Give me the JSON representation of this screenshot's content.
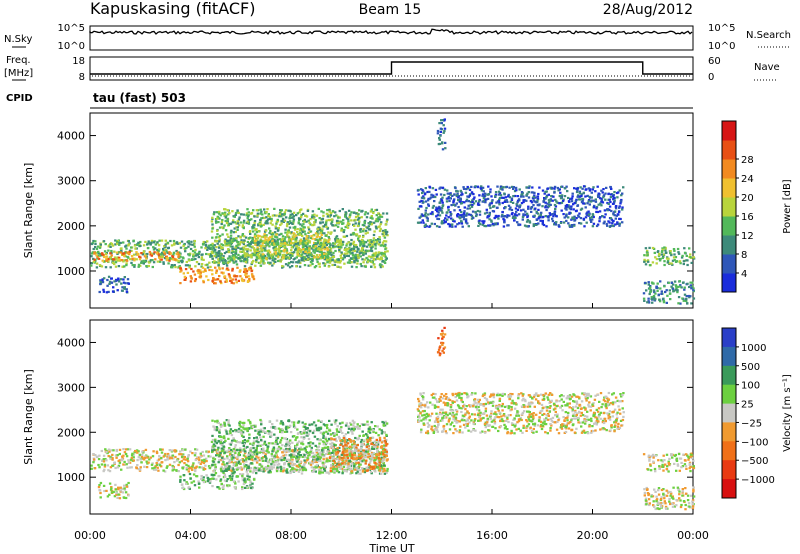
{
  "header": {
    "station": "Kapuskasing (fitACF)",
    "beam": "Beam 15",
    "date": "28/Aug/2012"
  },
  "panels": {
    "nsky_label": "N.Sky",
    "nsearch_label": "N.Search",
    "freq_label_1": "Freq.",
    "freq_label_2": "[MHz]",
    "nave_label": "Nave",
    "cpid_label": "CPID",
    "cpid_text": "tau (fast) 503",
    "noise_ticks": [
      "10^5",
      "10^0"
    ],
    "freq_ticks": [
      "18",
      "8"
    ],
    "nave_ticks": [
      "60",
      "0"
    ]
  },
  "chart_data": [
    {
      "type": "heatmap",
      "name_hint": "power",
      "xlabel": "Time UT",
      "ylabel": "Slant Range [km]",
      "xlim": [
        "00:00",
        "24:00"
      ],
      "ylim": [
        180,
        4500
      ],
      "xticks": [
        "00:00",
        "04:00",
        "08:00",
        "12:00",
        "16:00",
        "20:00",
        "00:00"
      ],
      "yticks": [
        1000,
        2000,
        3000,
        4000
      ],
      "colorbar": {
        "label": "Power [dB]",
        "ticks": [
          "4",
          "8",
          "12",
          "16",
          "20",
          "24",
          "28"
        ],
        "colors": [
          "#1a2ddb",
          "#2f57b8",
          "#3d8a7a",
          "#52b85a",
          "#b8d43c",
          "#f0c030",
          "#f28a20",
          "#e85015",
          "#d61515"
        ]
      },
      "blobs": [
        {
          "t0": 0.0,
          "t1": 11.8,
          "r0": 1100,
          "r1": 1700,
          "level": 3
        },
        {
          "t0": 0.0,
          "t1": 3.5,
          "r0": 1250,
          "r1": 1450,
          "level": 6
        },
        {
          "t0": 3.5,
          "t1": 6.5,
          "r0": 750,
          "r1": 1100,
          "level": 6
        },
        {
          "t0": 4.8,
          "t1": 11.8,
          "r0": 1200,
          "r1": 2400,
          "level": 3
        },
        {
          "t0": 6.5,
          "t1": 9.5,
          "r0": 1300,
          "r1": 1900,
          "level": 4
        },
        {
          "t0": 0.3,
          "t1": 1.5,
          "r0": 550,
          "r1": 900,
          "level": 1
        },
        {
          "t0": 13.0,
          "t1": 21.2,
          "r0": 2000,
          "r1": 2900,
          "level": 1
        },
        {
          "t0": 13.8,
          "t1": 14.1,
          "r0": 3700,
          "r1": 4400,
          "level": 1
        },
        {
          "t0": 22.0,
          "t1": 24.0,
          "r0": 1150,
          "r1": 1550,
          "level": 3
        },
        {
          "t0": 22.0,
          "t1": 24.0,
          "r0": 300,
          "r1": 800,
          "level": 2
        }
      ]
    },
    {
      "type": "heatmap",
      "name_hint": "velocity",
      "xlabel": "Time UT",
      "ylabel": "Slant Range [km]",
      "xlim": [
        "00:00",
        "24:00"
      ],
      "ylim": [
        180,
        4500
      ],
      "xticks": [
        "00:00",
        "04:00",
        "08:00",
        "12:00",
        "16:00",
        "20:00",
        "00:00"
      ],
      "yticks": [
        1000,
        2000,
        3000,
        4000
      ],
      "colorbar": {
        "label": "Velocity [m s⁻¹]",
        "ticks": [
          "1000",
          "500",
          "100",
          "25",
          "−25",
          "−100",
          "−500",
          "−1000"
        ],
        "colors": [
          "#2a3fc8",
          "#2f6aa8",
          "#3a9a5a",
          "#6cd040",
          "#c8c8c4",
          "#f09a30",
          "#f07018",
          "#e83a12",
          "#d81010"
        ]
      },
      "blobs": [
        {
          "t0": 0.0,
          "t1": 11.8,
          "r0": 1150,
          "r1": 1650,
          "level": 4
        },
        {
          "t0": 3.5,
          "t1": 6.5,
          "r0": 750,
          "r1": 1100,
          "level": 3
        },
        {
          "t0": 4.8,
          "t1": 11.8,
          "r0": 1100,
          "r1": 2300,
          "level": 3
        },
        {
          "t0": 9.5,
          "t1": 11.8,
          "r0": 1150,
          "r1": 1900,
          "level": 5
        },
        {
          "t0": 0.3,
          "t1": 1.5,
          "r0": 550,
          "r1": 900,
          "level": 4
        },
        {
          "t0": 13.0,
          "t1": 21.2,
          "r0": 2000,
          "r1": 2900,
          "level": 4
        },
        {
          "t0": 13.8,
          "t1": 14.1,
          "r0": 3700,
          "r1": 4400,
          "level": 6
        },
        {
          "t0": 22.0,
          "t1": 24.0,
          "r0": 1150,
          "r1": 1550,
          "level": 4
        },
        {
          "t0": 22.0,
          "t1": 24.0,
          "r0": 300,
          "r1": 800,
          "level": 4
        }
      ]
    }
  ]
}
